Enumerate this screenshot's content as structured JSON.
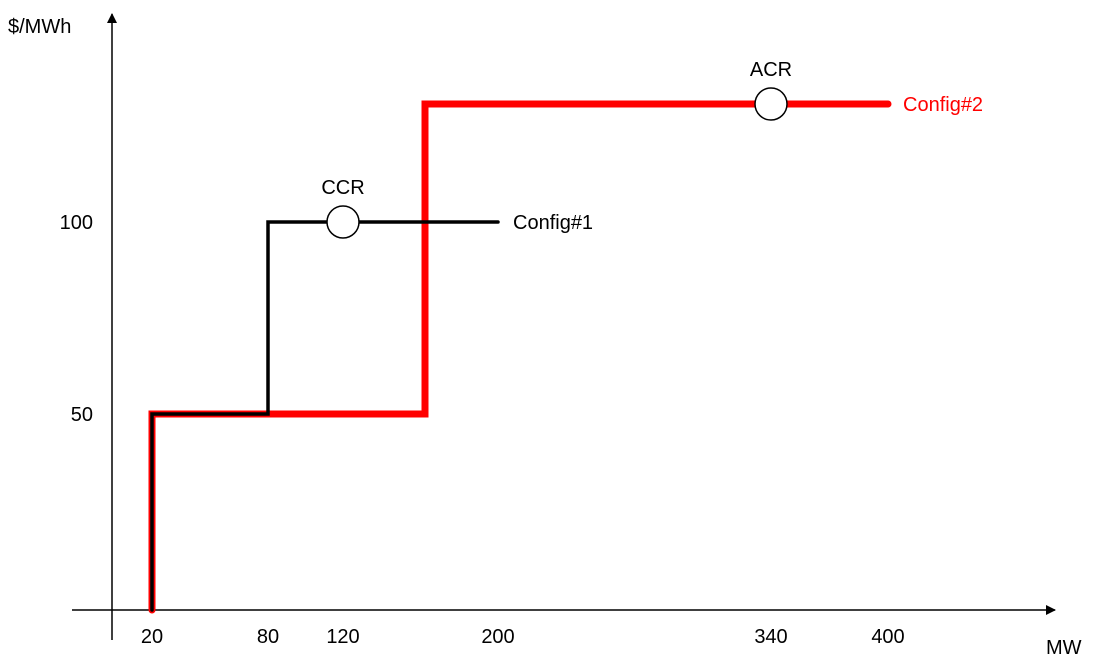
{
  "chart_data": {
    "type": "line",
    "title": "",
    "xlabel": "MW",
    "ylabel": "$/MWh",
    "x_ticks": [
      20,
      80,
      120,
      200,
      340,
      400
    ],
    "y_ticks": [
      50,
      100
    ],
    "xlim": [
      0,
      400
    ],
    "ylim": [
      0,
      130
    ],
    "grid": false,
    "series": [
      {
        "name": "Config#2",
        "color": "#ff0000",
        "points": [
          [
            20,
            0
          ],
          [
            20,
            50
          ],
          [
            160,
            50
          ],
          [
            160,
            130
          ],
          [
            400,
            130
          ]
        ]
      },
      {
        "name": "Config#1",
        "color": "#000000",
        "points": [
          [
            20,
            0
          ],
          [
            20,
            50
          ],
          [
            80,
            50
          ],
          [
            80,
            100
          ],
          [
            200,
            100
          ]
        ]
      }
    ],
    "annotations": [
      {
        "label": "CCR",
        "x": 120,
        "y": 100
      },
      {
        "label": "ACR",
        "x": 340,
        "y": 130
      }
    ]
  }
}
